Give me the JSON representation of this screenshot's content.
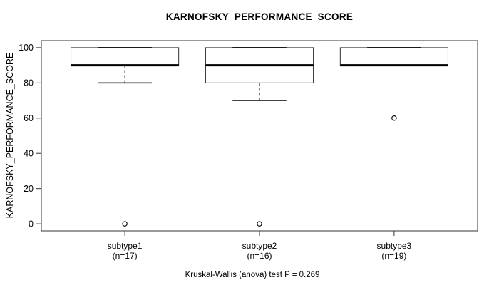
{
  "title": "KARNOFSKY_PERFORMANCE_SCORE",
  "chart_data": {
    "type": "boxplot",
    "title": "KARNOFSKY_PERFORMANCE_SCORE",
    "ylabel": "KARNOFSKY_PERFORMANCE_SCORE",
    "xlabel": "",
    "ylim": [
      0,
      100
    ],
    "yticks": [
      0,
      20,
      40,
      60,
      80,
      100
    ],
    "grid": false,
    "annotation": "Kruskal-Wallis (anova) test P = 0.269",
    "colors": {
      "box_fill": "#ffffff",
      "line": "#000000",
      "border": "#333333"
    },
    "groups": [
      {
        "label": "subtype1",
        "sublabel": "(n=17)",
        "n": 17,
        "q1": 90,
        "median": 90,
        "q3": 100,
        "whisker_low": 80,
        "whisker_high": 100,
        "outliers": [
          0
        ]
      },
      {
        "label": "subtype2",
        "sublabel": "(n=16)",
        "n": 16,
        "q1": 80,
        "median": 90,
        "q3": 100,
        "whisker_low": 70,
        "whisker_high": 100,
        "outliers": [
          0
        ]
      },
      {
        "label": "subtype3",
        "sublabel": "(n=19)",
        "n": 19,
        "q1": 90,
        "median": 90,
        "q3": 100,
        "whisker_low": 90,
        "whisker_high": 100,
        "outliers": [
          60
        ]
      }
    ]
  }
}
